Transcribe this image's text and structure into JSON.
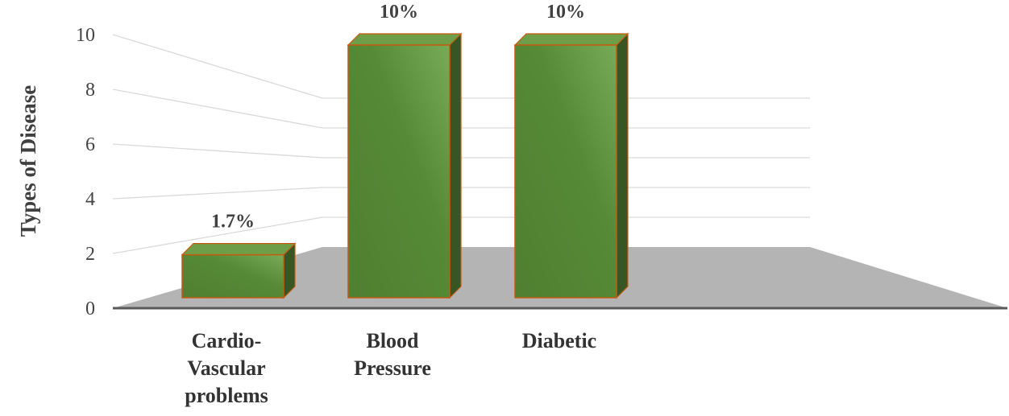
{
  "chart_data": {
    "type": "bar",
    "categories": [
      "Cardio-Vascular problems",
      "Blood Pressure",
      "Diabetic"
    ],
    "category_lines": [
      [
        "Cardio-",
        "Vascular",
        "problems"
      ],
      [
        "Blood",
        "Pressure"
      ],
      [
        "Diabetic"
      ]
    ],
    "values": [
      1.7,
      10,
      10
    ],
    "data_labels": [
      "1.7%",
      "10%",
      "10%"
    ],
    "title": "",
    "xlabel": "",
    "ylabel": "Types of Disease",
    "ylim": [
      0,
      10
    ],
    "yticks": [
      "0",
      "2",
      "4",
      "6",
      "8",
      "10"
    ],
    "grid": true,
    "style": "3d-column",
    "colors": {
      "bar": "#548235",
      "bar_side": "#375623",
      "bar_top": "#6e9e47",
      "bar_edge": "#c55a11",
      "floor": "#b4b4b4",
      "grid": "#d9d9d9",
      "axis": "#595959"
    }
  }
}
